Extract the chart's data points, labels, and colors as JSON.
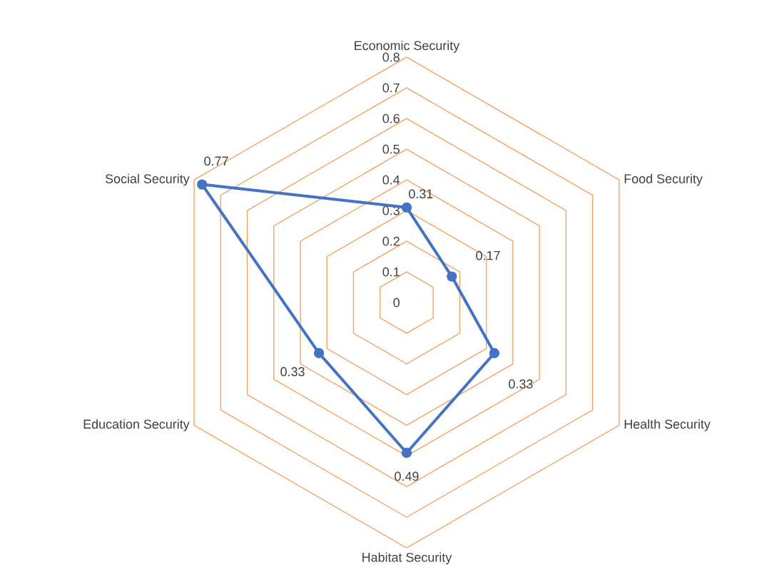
{
  "chart_data": {
    "type": "radar",
    "categories": [
      "Economic Security",
      "Food Security",
      "Health Security",
      "Habitat Security",
      "Education Security",
      "Social Security"
    ],
    "series": [
      {
        "color": "#4472c4",
        "values": [
          0.31,
          0.17,
          0.33,
          0.49,
          0.33,
          0.77
        ]
      }
    ],
    "ylim": [
      0,
      0.8
    ],
    "yticks": [
      0,
      0.1,
      0.2,
      0.3,
      0.4,
      0.5,
      0.6,
      0.7,
      0.8
    ],
    "grid": true,
    "data_labels": true,
    "marker": "circle",
    "line_style": "solid"
  }
}
